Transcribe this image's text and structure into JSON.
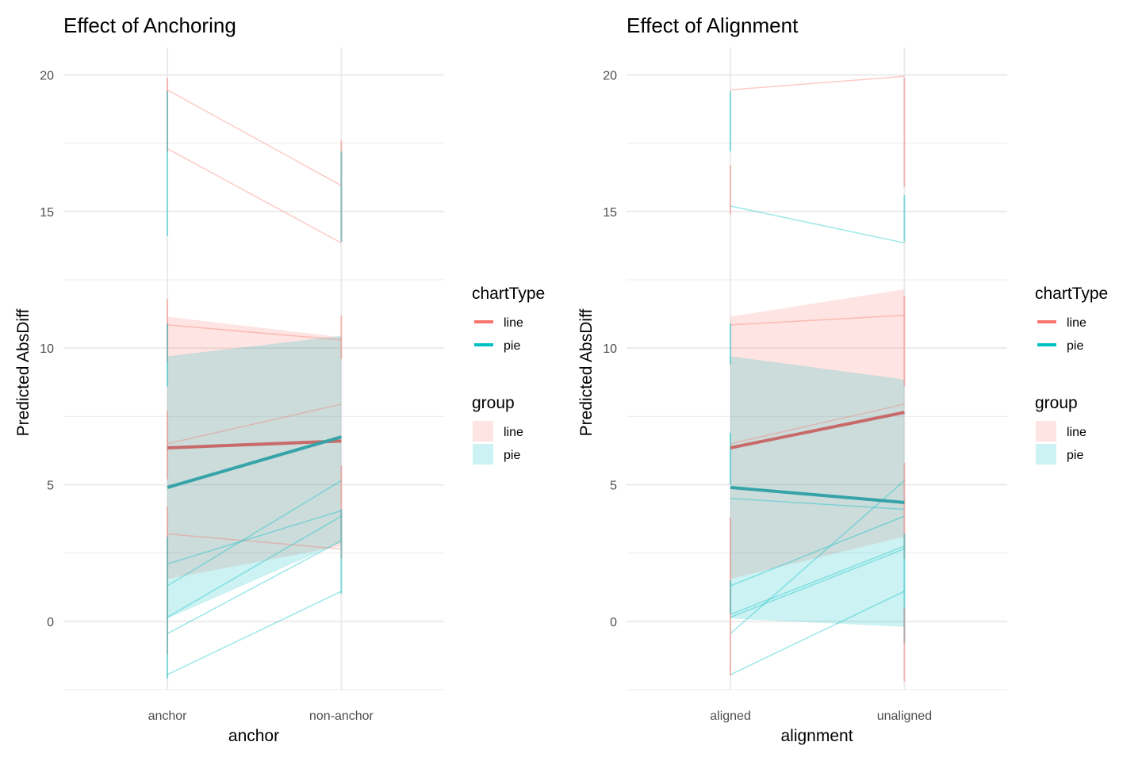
{
  "colors": {
    "line": "#F8766D",
    "pie": "#00BFC4",
    "line_dark": "#C86A6A",
    "pie_dark": "#35A3A8",
    "grid": "#EBEBEB",
    "overlap": "#CFD7D7"
  },
  "chart_data": [
    {
      "type": "line",
      "title": "Effect of Anchoring",
      "xlabel": "anchor",
      "ylabel": "Predicted AbsDiff",
      "categories": [
        "anchor",
        "non-anchor"
      ],
      "y_ticks": [
        0,
        5,
        10,
        15,
        20
      ],
      "ylim": [
        -2.5,
        21
      ],
      "grid": true,
      "series": [
        {
          "name": "line",
          "group": "chartType",
          "values": [
            6.35,
            6.6
          ]
        },
        {
          "name": "pie",
          "group": "chartType",
          "values": [
            4.9,
            6.75
          ]
        }
      ],
      "ribbons": [
        {
          "name": "line",
          "lower": [
            1.55,
            2.75
          ],
          "upper": [
            11.15,
            10.4
          ]
        },
        {
          "name": "pie",
          "lower": [
            0.1,
            2.9
          ],
          "upper": [
            9.7,
            10.45
          ]
        }
      ],
      "individual_lines": [
        {
          "group": "line",
          "values": [
            19.45,
            15.95
          ]
        },
        {
          "group": "line",
          "values": [
            17.3,
            13.85
          ]
        },
        {
          "group": "line",
          "values": [
            10.85,
            10.3
          ]
        },
        {
          "group": "line",
          "values": [
            6.5,
            7.95
          ]
        },
        {
          "group": "line",
          "values": [
            3.2,
            2.65
          ]
        },
        {
          "group": "pie",
          "values": [
            2.1,
            4.05
          ]
        },
        {
          "group": "pie",
          "values": [
            1.3,
            5.15
          ]
        },
        {
          "group": "pie",
          "values": [
            0.15,
            3.85
          ]
        },
        {
          "group": "pie",
          "values": [
            -0.45,
            2.95
          ]
        },
        {
          "group": "pie",
          "values": [
            -1.95,
            1.1
          ]
        }
      ],
      "error_bars": [
        {
          "group": "line",
          "x": 0,
          "lower": 17.2,
          "upper": 19.9
        },
        {
          "group": "pie",
          "x": 0,
          "lower": 14.1,
          "upper": 19.4
        },
        {
          "group": "line",
          "x": 0,
          "lower": 9.5,
          "upper": 11.8
        },
        {
          "group": "pie",
          "x": 0,
          "lower": 8.6,
          "upper": 10.9
        },
        {
          "group": "line",
          "x": 0,
          "lower": 5.2,
          "upper": 7.7
        },
        {
          "group": "line",
          "x": 0,
          "lower": -1.2,
          "upper": 4.2
        },
        {
          "group": "pie",
          "x": 0,
          "lower": -2.1,
          "upper": 3.1
        },
        {
          "group": "line",
          "x": 1,
          "lower": 13.9,
          "upper": 17.6
        },
        {
          "group": "pie",
          "x": 1,
          "lower": 13.9,
          "upper": 17.2
        },
        {
          "group": "line",
          "x": 1,
          "lower": 9.6,
          "upper": 11.2
        },
        {
          "group": "line",
          "x": 1,
          "lower": 2.3,
          "upper": 5.7
        },
        {
          "group": "pie",
          "x": 1,
          "lower": 1.0,
          "upper": 4.1
        }
      ]
    },
    {
      "type": "line",
      "title": "Effect of Alignment",
      "xlabel": "alignment",
      "ylabel": "Predicted AbsDiff",
      "categories": [
        "aligned",
        "unaligned"
      ],
      "y_ticks": [
        0,
        5,
        10,
        15,
        20
      ],
      "ylim": [
        -2.5,
        21
      ],
      "grid": true,
      "series": [
        {
          "name": "line",
          "group": "chartType",
          "values": [
            6.35,
            7.65
          ]
        },
        {
          "name": "pie",
          "group": "chartType",
          "values": [
            4.9,
            4.35
          ]
        }
      ],
      "ribbons": [
        {
          "name": "line",
          "lower": [
            1.55,
            3.1
          ],
          "upper": [
            11.15,
            12.15
          ]
        },
        {
          "name": "pie",
          "lower": [
            0.1,
            -0.2
          ],
          "upper": [
            9.7,
            8.85
          ]
        }
      ],
      "individual_lines": [
        {
          "group": "line",
          "values": [
            19.45,
            19.95
          ]
        },
        {
          "group": "pie",
          "values": [
            15.2,
            13.85
          ]
        },
        {
          "group": "line",
          "values": [
            10.85,
            11.2
          ]
        },
        {
          "group": "line",
          "values": [
            6.5,
            7.95
          ]
        },
        {
          "group": "pie",
          "values": [
            4.5,
            4.1
          ]
        },
        {
          "group": "pie",
          "values": [
            1.3,
            3.85
          ]
        },
        {
          "group": "pie",
          "values": [
            0.25,
            2.75
          ]
        },
        {
          "group": "pie",
          "values": [
            0.15,
            2.65
          ]
        },
        {
          "group": "pie",
          "values": [
            -0.45,
            5.15
          ]
        },
        {
          "group": "pie",
          "values": [
            -1.95,
            1.1
          ]
        }
      ],
      "error_bars": [
        {
          "group": "pie",
          "x": 0,
          "lower": 17.2,
          "upper": 19.4
        },
        {
          "group": "line",
          "x": 0,
          "lower": 14.9,
          "upper": 16.7
        },
        {
          "group": "pie",
          "x": 0,
          "lower": 9.4,
          "upper": 10.9
        },
        {
          "group": "pie",
          "x": 0,
          "lower": 5.0,
          "upper": 6.9
        },
        {
          "group": "line",
          "x": 0,
          "lower": -2.0,
          "upper": 3.8
        },
        {
          "group": "pie",
          "x": 0,
          "lower": 0.3,
          "upper": 1.5
        },
        {
          "group": "line",
          "x": 1,
          "lower": 15.9,
          "upper": 19.9
        },
        {
          "group": "pie",
          "x": 1,
          "lower": 13.9,
          "upper": 15.6
        },
        {
          "group": "line",
          "x": 1,
          "lower": 8.6,
          "upper": 11.9
        },
        {
          "group": "line",
          "x": 1,
          "lower": 2.3,
          "upper": 5.8
        },
        {
          "group": "pie",
          "x": 1,
          "lower": -0.8,
          "upper": 3.2
        },
        {
          "group": "line",
          "x": 1,
          "lower": -2.2,
          "upper": 0.5
        }
      ]
    }
  ],
  "legend": {
    "placement": "right",
    "chartType_title": "chartType",
    "group_title": "group",
    "items": [
      "line",
      "pie"
    ]
  }
}
